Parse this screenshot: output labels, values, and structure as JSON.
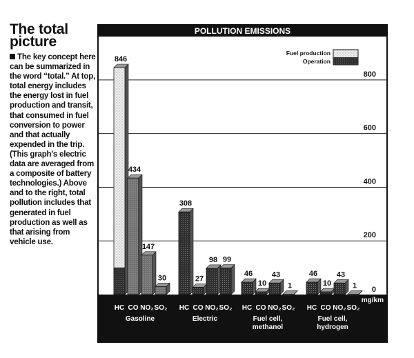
{
  "sidebar": {
    "title": "The total picture",
    "body": "The key concept here can be summarized in the word “total.” At top, total energy includes the energy lost in fuel production and transit, that consumed in fuel conversion to power and that actually expended in the trip. (This graph's electric data are averaged from a composite of battery technologies.) Above and to the right, total pollution includes that generated in fuel production as well as that arising from vehicle use."
  },
  "colors": {
    "frame": "#111111",
    "grid": "#222222",
    "light_bar": "#e8e8e8",
    "dark_bar": "#333333",
    "mid_bar": "#7a7a7a",
    "background": "#ffffff"
  },
  "chart_data": {
    "type": "bar",
    "title": "POLLUTION EMISSIONS",
    "unit": "mg/km",
    "legend": {
      "position": "top-right",
      "items": [
        "Fuel production",
        "Operation"
      ]
    },
    "ylim": [
      0,
      900
    ],
    "yticks": [
      "0",
      "200",
      "400",
      "600",
      "800"
    ],
    "grid": true,
    "groups": [
      {
        "name": "Gasoline",
        "bars": [
          {
            "label": "HC",
            "value": 846,
            "operation": 100,
            "value_label": "846"
          },
          {
            "label": "CO",
            "value": 434,
            "operation": 0,
            "value_label": "434"
          },
          {
            "label": "NO₂",
            "value": 147,
            "operation": 0,
            "value_label": "147"
          },
          {
            "label": "SO₂",
            "value": 30,
            "operation": 0,
            "value_label": "30"
          }
        ]
      },
      {
        "name": "Electric",
        "bars": [
          {
            "label": "HC",
            "value": 308,
            "operation": 308,
            "value_label": "308"
          },
          {
            "label": "CO",
            "value": 27,
            "operation": 27,
            "value_label": "27"
          },
          {
            "label": "NO₂",
            "value": 98,
            "operation": 98,
            "value_label": "98"
          },
          {
            "label": "SO₂",
            "value": 99,
            "operation": 99,
            "value_label": "99"
          }
        ]
      },
      {
        "name": "Fuel cell, methanol",
        "bars": [
          {
            "label": "HC",
            "value": 46,
            "operation": 46,
            "value_label": "46"
          },
          {
            "label": "CO",
            "value": 10,
            "operation": 10,
            "value_label": "10"
          },
          {
            "label": "NO₂",
            "value": 43,
            "operation": 43,
            "value_label": "43"
          },
          {
            "label": "SO₂",
            "value": 1,
            "operation": 1,
            "value_label": "1"
          }
        ]
      },
      {
        "name": "Fuel cell, hydrogen",
        "bars": [
          {
            "label": "HC",
            "value": 46,
            "operation": 46,
            "value_label": "46"
          },
          {
            "label": "CO",
            "value": 10,
            "operation": 10,
            "value_label": "10"
          },
          {
            "label": "NO₂",
            "value": 43,
            "operation": 43,
            "value_label": "43"
          },
          {
            "label": "SO₂",
            "value": 1,
            "operation": 1,
            "value_label": "1"
          }
        ]
      }
    ]
  }
}
